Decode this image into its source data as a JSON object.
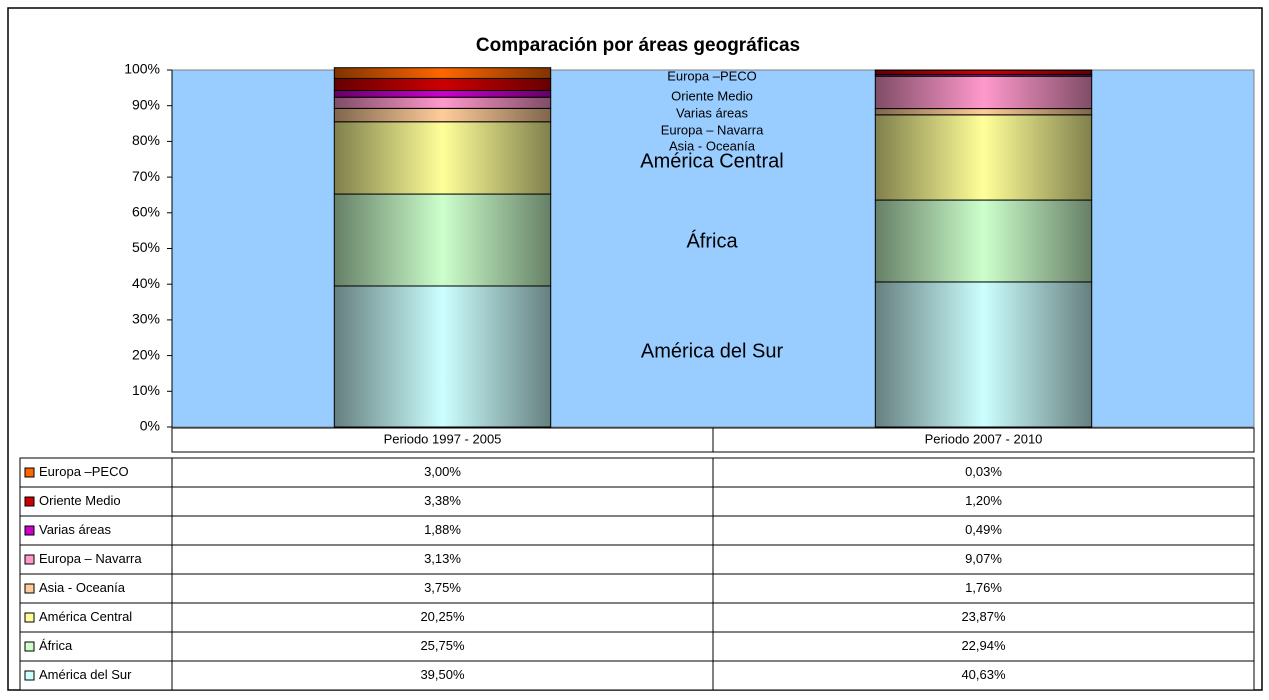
{
  "chart_data": {
    "type": "stacked_bar",
    "title": "Comparación por áreas geográficas",
    "categories": [
      "Periodo 1997 - 2005",
      "Periodo 2007 - 2010"
    ],
    "ylim": [
      0,
      100
    ],
    "yticks": [
      {
        "value": 0,
        "label": "0%"
      },
      {
        "value": 10,
        "label": "10%"
      },
      {
        "value": 20,
        "label": "20%"
      },
      {
        "value": 30,
        "label": "30%"
      },
      {
        "value": 40,
        "label": "40%"
      },
      {
        "value": 50,
        "label": "50%"
      },
      {
        "value": 60,
        "label": "60%"
      },
      {
        "value": 70,
        "label": "70%"
      },
      {
        "value": 80,
        "label": "80%"
      },
      {
        "value": 90,
        "label": "90%"
      },
      {
        "value": 100,
        "label": "100%"
      }
    ],
    "plot_background": "#99ccff",
    "series": [
      {
        "name": "América del Sur",
        "color": "#ccffff",
        "values": [
          39.5,
          40.63
        ],
        "value_labels": [
          "39,50%",
          "40,63%"
        ]
      },
      {
        "name": "África",
        "color": "#ccffcc",
        "values": [
          25.75,
          22.94
        ],
        "value_labels": [
          "25,75%",
          "22,94%"
        ]
      },
      {
        "name": "América Central",
        "color": "#ffff99",
        "values": [
          20.25,
          23.87
        ],
        "value_labels": [
          "20,25%",
          "23,87%"
        ]
      },
      {
        "name": "Asia - Oceanía",
        "color": "#ffcc99",
        "values": [
          3.75,
          1.76
        ],
        "value_labels": [
          "3,75%",
          "1,76%"
        ]
      },
      {
        "name": "Europa – Navarra",
        "color": "#ff99cc",
        "values": [
          3.13,
          9.07
        ],
        "value_labels": [
          "3,13%",
          "9,07%"
        ]
      },
      {
        "name": "Varias áreas",
        "color": "#cc00cc",
        "values": [
          1.88,
          0.49
        ],
        "value_labels": [
          "1,88%",
          "0,49%"
        ]
      },
      {
        "name": "Oriente Medio",
        "color": "#cc0000",
        "values": [
          3.38,
          1.2
        ],
        "value_labels": [
          "3,38%",
          "1,20%"
        ]
      },
      {
        "name": "Europa –PECO",
        "color": "#ff6600",
        "values": [
          3.0,
          0.03
        ],
        "value_labels": [
          "3,00%",
          "0,03%"
        ]
      }
    ]
  }
}
